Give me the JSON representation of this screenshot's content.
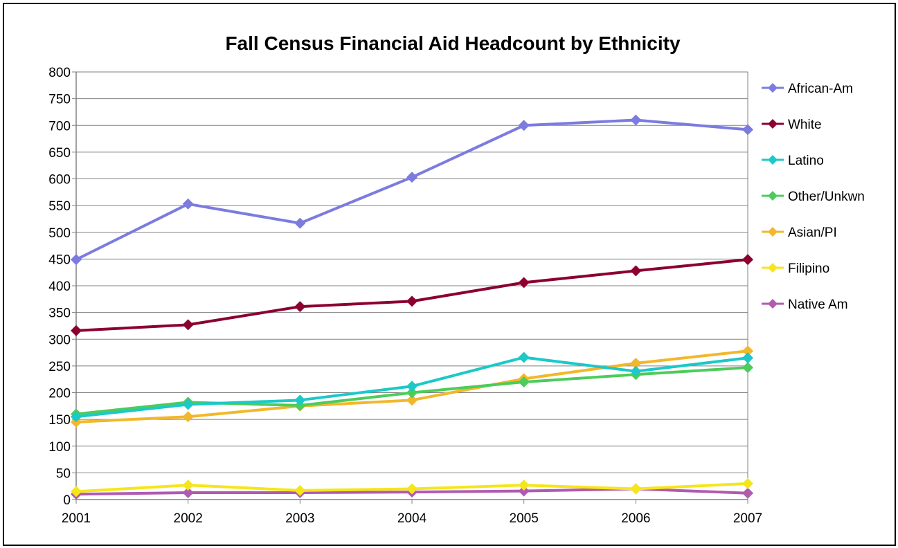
{
  "chart_data": {
    "type": "line",
    "title": "Fall Census Financial Aid Headcount by Ethnicity",
    "xlabel": "",
    "ylabel": "",
    "categories": [
      "2001",
      "2002",
      "2003",
      "2004",
      "2005",
      "2006",
      "2007"
    ],
    "ylim": [
      0,
      800
    ],
    "yticks": [
      0,
      50,
      100,
      150,
      200,
      250,
      300,
      350,
      400,
      450,
      500,
      550,
      600,
      650,
      700,
      750,
      800
    ],
    "grid": "horizontal",
    "legend_position": "right",
    "marker": "diamond",
    "series": [
      {
        "name": "African-Am",
        "color": "#7b7be0",
        "values": [
          449,
          553,
          517,
          603,
          700,
          710,
          692
        ]
      },
      {
        "name": "White",
        "color": "#8b0030",
        "values": [
          316,
          327,
          361,
          371,
          406,
          428,
          449
        ]
      },
      {
        "name": "Latino",
        "color": "#1cc8c8",
        "values": [
          155,
          178,
          186,
          212,
          266,
          240,
          265
        ]
      },
      {
        "name": "Other/Unkwn",
        "color": "#4ccc5a",
        "values": [
          160,
          182,
          176,
          200,
          220,
          234,
          247
        ]
      },
      {
        "name": "Asian/PI",
        "color": "#f2b72a",
        "values": [
          145,
          155,
          175,
          186,
          226,
          255,
          278
        ]
      },
      {
        "name": "Filipino",
        "color": "#f5e61a",
        "values": [
          15,
          27,
          17,
          20,
          27,
          20,
          30
        ]
      },
      {
        "name": "Native Am",
        "color": "#b05ab0",
        "values": [
          10,
          13,
          13,
          14,
          16,
          20,
          12
        ]
      }
    ]
  }
}
